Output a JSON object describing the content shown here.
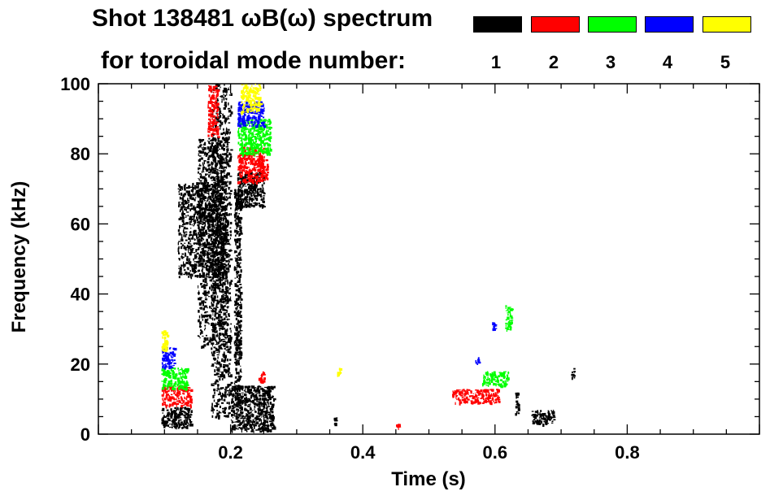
{
  "title": {
    "line1": "Shot 138481 ωB(ω) spectrum",
    "line2": "for toroidal mode number:"
  },
  "legend": [
    {
      "label": "1",
      "color": "#000000"
    },
    {
      "label": "2",
      "color": "#ff0000"
    },
    {
      "label": "3",
      "color": "#00ff00"
    },
    {
      "label": "4",
      "color": "#0000ff"
    },
    {
      "label": "5",
      "color": "#ffff00"
    }
  ],
  "chart_data": {
    "type": "scatter",
    "title": "Shot 138481 ωB(ω) spectrum for toroidal mode number:",
    "xlabel": "Time (s)",
    "ylabel": "Frequency (kHz)",
    "xlim": [
      0.0,
      1.0
    ],
    "ylim": [
      0,
      100
    ],
    "x_ticks": [
      0.2,
      0.4,
      0.6,
      0.8
    ],
    "x_tick_labels": [
      "0.2",
      "0.4",
      "0.6",
      "0.8"
    ],
    "y_ticks": [
      0,
      20,
      40,
      60,
      80,
      100
    ],
    "y_tick_labels": [
      "0",
      "20",
      "40",
      "60",
      "80",
      "100"
    ],
    "series": [
      {
        "name": "1",
        "color": "#000000",
        "clusters": [
          {
            "x": [
              0.095,
              0.14
            ],
            "y": [
              2,
              8
            ]
          },
          {
            "x": [
              0.12,
              0.19
            ],
            "y": [
              45,
              72
            ]
          },
          {
            "x": [
              0.15,
              0.195
            ],
            "y": [
              25,
              85
            ]
          },
          {
            "x": [
              0.17,
              0.2
            ],
            "y": [
              5,
              100
            ]
          },
          {
            "x": [
              0.205,
              0.215
            ],
            "y": [
              10,
              70
            ]
          },
          {
            "x": [
              0.2,
              0.265
            ],
            "y": [
              1,
              14
            ]
          },
          {
            "x": [
              0.21,
              0.25
            ],
            "y": [
              65,
              75
            ]
          },
          {
            "x": [
              0.355,
              0.36
            ],
            "y": [
              3,
              5
            ]
          },
          {
            "x": [
              0.63,
              0.635
            ],
            "y": [
              6,
              12
            ]
          },
          {
            "x": [
              0.655,
              0.69
            ],
            "y": [
              3,
              7
            ]
          },
          {
            "x": [
              0.715,
              0.72
            ],
            "y": [
              16,
              19
            ]
          }
        ]
      },
      {
        "name": "2",
        "color": "#ff0000",
        "clusters": [
          {
            "x": [
              0.095,
              0.14
            ],
            "y": [
              8,
              14
            ]
          },
          {
            "x": [
              0.165,
              0.18
            ],
            "y": [
              85,
              100
            ]
          },
          {
            "x": [
              0.21,
              0.255
            ],
            "y": [
              72,
              82
            ]
          },
          {
            "x": [
              0.24,
              0.25
            ],
            "y": [
              15,
              18
            ]
          },
          {
            "x": [
              0.535,
              0.605
            ],
            "y": [
              9,
              13
            ]
          },
          {
            "x": [
              0.45,
              0.455
            ],
            "y": [
              2,
              3
            ]
          }
        ]
      },
      {
        "name": "3",
        "color": "#00ff00",
        "clusters": [
          {
            "x": [
              0.095,
              0.135
            ],
            "y": [
              13,
              19
            ]
          },
          {
            "x": [
              0.21,
              0.26
            ],
            "y": [
              80,
              90
            ]
          },
          {
            "x": [
              0.58,
              0.62
            ],
            "y": [
              14,
              18
            ]
          },
          {
            "x": [
              0.615,
              0.625
            ],
            "y": [
              30,
              37
            ]
          }
        ]
      },
      {
        "name": "4",
        "color": "#0000ff",
        "clusters": [
          {
            "x": [
              0.095,
              0.115
            ],
            "y": [
              19,
              25
            ]
          },
          {
            "x": [
              0.21,
              0.25
            ],
            "y": [
              88,
              95
            ]
          },
          {
            "x": [
              0.57,
              0.575
            ],
            "y": [
              20,
              22
            ]
          },
          {
            "x": [
              0.595,
              0.6
            ],
            "y": [
              30,
              32
            ]
          }
        ]
      },
      {
        "name": "5",
        "color": "#ffff00",
        "clusters": [
          {
            "x": [
              0.095,
              0.105
            ],
            "y": [
              24,
              30
            ]
          },
          {
            "x": [
              0.215,
              0.245
            ],
            "y": [
              92,
              100
            ]
          },
          {
            "x": [
              0.36,
              0.365
            ],
            "y": [
              17,
              19
            ]
          }
        ]
      }
    ]
  }
}
